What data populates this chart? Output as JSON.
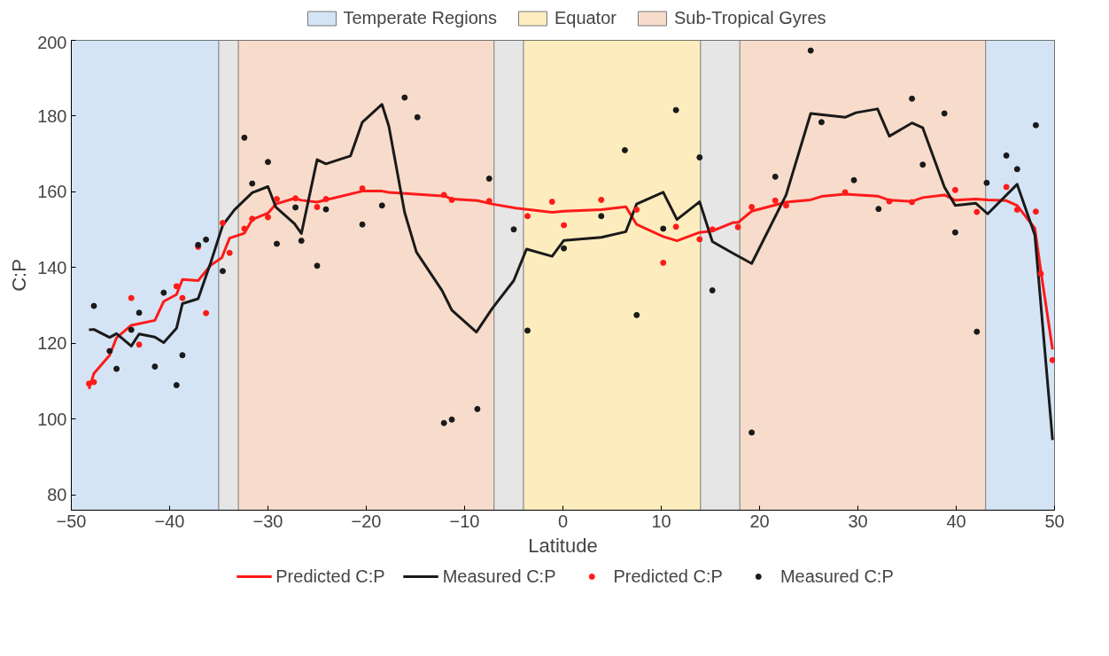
{
  "chart_data": {
    "type": "line",
    "xlabel": "Latitude",
    "ylabel": "C:P",
    "xlim": [
      -50,
      50
    ],
    "ylim": [
      76,
      200
    ],
    "xticks": [
      -50,
      -40,
      -30,
      -20,
      -10,
      0,
      10,
      20,
      30,
      40,
      50
    ],
    "yticks": [
      80,
      100,
      120,
      140,
      160,
      180,
      200
    ],
    "grid": false,
    "legend": "bottom",
    "bands": [
      {
        "axis": "x",
        "from": -50,
        "to": -35,
        "label": "Temperate Regions",
        "color": "#d4e4f4"
      },
      {
        "axis": "x",
        "from": -35,
        "to": -33,
        "color": "#e6e6e6"
      },
      {
        "axis": "x",
        "from": -33,
        "to": -7,
        "color": "#f8dccb"
      },
      {
        "axis": "x",
        "from": -7,
        "to": -4,
        "color": "#e6e6e6"
      },
      {
        "axis": "x",
        "from": -4,
        "to": 14,
        "label": "Equator",
        "color": "#fdedbe"
      },
      {
        "axis": "x",
        "from": 14,
        "to": 18,
        "color": "#e6e6e6"
      },
      {
        "axis": "x",
        "from": 18,
        "to": 43,
        "label": "Sub-Tropical Gyres",
        "color": "#f8dccb"
      },
      {
        "axis": "x",
        "from": 43,
        "to": 50,
        "color": "#d4e4f4"
      }
    ],
    "series": [
      {
        "name": "Predicted C:P",
        "color": "#ff1a1a",
        "x": [
          -48.2,
          -47.7,
          -46.1,
          -45.4,
          -43.9,
          -41.5,
          -40.6,
          -39.3,
          -38.7,
          -37.1,
          -35.8,
          -34.7,
          -33.9,
          -32.4,
          -31.6,
          -30.0,
          -29.2,
          -27.3,
          -26.6,
          -25.0,
          -24.1,
          -20.4,
          -18.4,
          -17.7,
          -12.0,
          -11.3,
          -8.7,
          -7.2,
          -4.8,
          -1.1,
          0.1,
          3.9,
          6.4,
          7.5,
          10.2,
          11.6,
          13.9,
          15.2,
          17.3,
          17.8,
          19.2,
          22.7,
          25.2,
          26.3,
          28.7,
          32.0,
          33.2,
          35.5,
          36.6,
          38.8,
          39.9,
          42.0,
          43.2,
          45.1,
          46.2,
          48.0,
          48.6,
          49.8
        ],
        "values": [
          108.0,
          112.1,
          116.9,
          121.5,
          124.8,
          126.1,
          131.1,
          132.9,
          136.9,
          136.6,
          140.7,
          142.6,
          147.8,
          149.1,
          152.7,
          154.4,
          156.8,
          158.3,
          157.8,
          157.3,
          157.9,
          160.2,
          160.2,
          159.9,
          158.9,
          158.1,
          157.7,
          156.8,
          155.7,
          154.6,
          154.9,
          155.3,
          156.1,
          151.4,
          148.2,
          147.1,
          149.3,
          149.7,
          151.9,
          151.9,
          154.9,
          157.3,
          157.9,
          158.8,
          159.4,
          158.9,
          157.8,
          157.5,
          158.5,
          159.2,
          157.8,
          158.1,
          157.9,
          157.7,
          156.4,
          150.4,
          139.3,
          118.4
        ]
      },
      {
        "name": "Measured C:P",
        "color": "#1a1a1a",
        "x": [
          -48.2,
          -47.7,
          -46.1,
          -45.4,
          -43.9,
          -43.1,
          -41.5,
          -40.6,
          -39.3,
          -38.7,
          -37.1,
          -35.8,
          -34.6,
          -33.4,
          -31.6,
          -30.0,
          -29.2,
          -27.3,
          -26.6,
          -25.0,
          -24.1,
          -21.6,
          -20.4,
          -18.4,
          -17.7,
          -16.1,
          -14.9,
          -12.3,
          -11.3,
          -8.8,
          -7.2,
          -5.0,
          -3.7,
          -1.1,
          0.1,
          3.9,
          6.4,
          7.5,
          10.2,
          11.6,
          13.9,
          15.2,
          17.3,
          19.2,
          22.7,
          25.2,
          28.7,
          29.8,
          32.0,
          33.2,
          35.5,
          36.6,
          38.8,
          39.9,
          42.0,
          43.2,
          46.2,
          48.0,
          49.8
        ],
        "values": [
          123.6,
          123.7,
          121.6,
          122.6,
          119.3,
          122.5,
          121.7,
          120.2,
          124.0,
          130.5,
          131.8,
          141.5,
          151.2,
          155.3,
          159.8,
          161.4,
          156.0,
          151.6,
          149.0,
          168.5,
          167.4,
          169.5,
          178.4,
          183.1,
          177.3,
          154.6,
          144.1,
          134.0,
          128.8,
          123.0,
          129.2,
          136.6,
          144.9,
          143.0,
          147.2,
          148.0,
          149.5,
          156.8,
          159.9,
          152.7,
          157.4,
          146.9,
          143.8,
          141.1,
          159.2,
          180.7,
          179.7,
          180.9,
          181.9,
          174.7,
          178.2,
          176.9,
          161.3,
          156.4,
          157.0,
          154.2,
          162.0,
          148.6,
          94.5
        ]
      },
      {
        "name": "Predicted C:P",
        "type": "scatter",
        "color": "#ff1a1a",
        "x": [
          -48.2,
          -47.7,
          -43.9,
          -43.1,
          -39.3,
          -38.7,
          -37.1,
          -36.3,
          -34.6,
          -33.9,
          -32.4,
          -31.6,
          -30.0,
          -29.1,
          -27.2,
          -25.0,
          -24.1,
          -20.4,
          -12.1,
          -11.3,
          -7.5,
          -3.6,
          -1.1,
          0.1,
          3.9,
          7.5,
          10.2,
          11.5,
          13.9,
          15.2,
          17.8,
          19.2,
          21.6,
          22.7,
          28.7,
          33.2,
          35.5,
          39.9,
          42.1,
          45.1,
          46.2,
          48.1,
          48.6,
          49.8
        ],
        "values": [
          109.4,
          109.8,
          132.0,
          119.7,
          135.1,
          132.0,
          145.5,
          128.0,
          151.8,
          143.9,
          150.3,
          152.9,
          153.3,
          158.1,
          158.3,
          156.0,
          158.1,
          160.9,
          159.2,
          157.9,
          157.6,
          153.6,
          157.4,
          151.2,
          157.9,
          155.3,
          141.3,
          150.8,
          147.5,
          150.1,
          150.7,
          156.0,
          157.7,
          156.4,
          159.9,
          157.5,
          157.3,
          160.5,
          154.7,
          161.3,
          155.3,
          154.8,
          138.4,
          115.6
        ]
      },
      {
        "name": "Measured C:P",
        "type": "scatter",
        "color": "#1a1a1a",
        "x": [
          -47.7,
          -46.1,
          -45.4,
          -43.9,
          -43.1,
          -41.5,
          -40.6,
          -39.3,
          -38.7,
          -37.1,
          -36.3,
          -34.6,
          -32.4,
          -31.6,
          -30.0,
          -29.1,
          -27.2,
          -26.6,
          -25.0,
          -24.1,
          -20.4,
          -18.4,
          -16.1,
          -14.8,
          -7.5,
          -12.1,
          -11.3,
          -8.7,
          -5.0,
          -3.6,
          0.1,
          3.9,
          6.3,
          7.5,
          10.2,
          11.5,
          13.9,
          15.2,
          19.2,
          21.6,
          25.2,
          26.3,
          29.6,
          32.1,
          35.5,
          36.6,
          38.8,
          39.9,
          42.1,
          43.1,
          45.1,
          46.2,
          48.1
        ],
        "values": [
          129.9,
          118.0,
          113.3,
          123.6,
          128.1,
          113.9,
          133.4,
          109.0,
          116.9,
          146.0,
          147.4,
          139.1,
          174.3,
          162.2,
          167.9,
          146.3,
          155.9,
          147.1,
          140.5,
          155.4,
          151.4,
          156.4,
          184.9,
          179.7,
          163.5,
          99.0,
          99.9,
          102.7,
          150.1,
          123.4,
          145.1,
          153.6,
          171.0,
          127.5,
          150.3,
          181.6,
          169.1,
          134.0,
          96.5,
          164.0,
          197.3,
          178.4,
          163.1,
          155.5,
          184.6,
          167.2,
          180.7,
          149.3,
          123.1,
          162.4,
          169.6,
          166.0,
          177.6
        ]
      }
    ]
  }
}
